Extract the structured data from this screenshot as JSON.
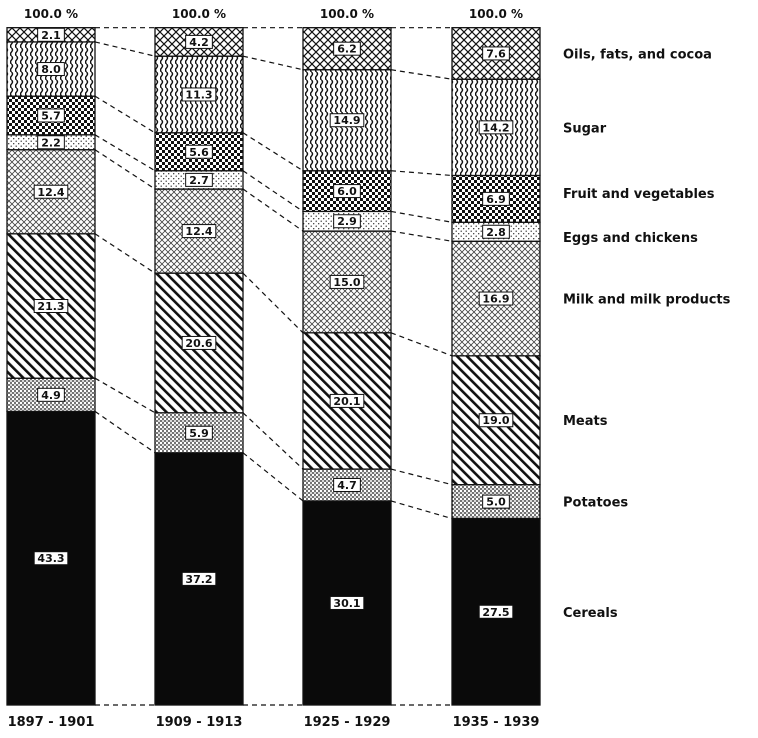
{
  "chart_data": {
    "type": "bar",
    "stacked": true,
    "normalized_percent": true,
    "categories": [
      "1897 - 1901",
      "1909 - 1913",
      "1925 - 1929",
      "1935 - 1939"
    ],
    "totals": [
      "100.0 %",
      "100.0 %",
      "100.0 %",
      "100.0 %"
    ],
    "series": [
      {
        "name": "Cereals",
        "values": [
          43.3,
          37.2,
          30.1,
          27.5
        ],
        "pattern": "solid-black"
      },
      {
        "name": "Potatoes",
        "values": [
          4.9,
          5.9,
          4.7,
          5.0
        ],
        "pattern": "stipple-dense"
      },
      {
        "name": "Meats",
        "values": [
          21.3,
          20.6,
          20.1,
          19.0
        ],
        "pattern": "diagonal-lines"
      },
      {
        "name": "Milk and milk products",
        "values": [
          12.4,
          12.4,
          15.0,
          16.9
        ],
        "pattern": "cross-hatch-fine"
      },
      {
        "name": "Eggs and chickens",
        "values": [
          2.2,
          2.7,
          2.9,
          2.8
        ],
        "pattern": "stipple-light"
      },
      {
        "name": "Fruit and vegetables",
        "values": [
          5.7,
          5.6,
          6.0,
          6.9
        ],
        "pattern": "checker-dots"
      },
      {
        "name": "Sugar",
        "values": [
          8.0,
          11.3,
          14.9,
          14.2
        ],
        "pattern": "wavy-vertical"
      },
      {
        "name": "Oils, fats, and cocoa",
        "values": [
          2.1,
          4.2,
          6.2,
          7.6
        ],
        "pattern": "cross-hatch-coarse"
      }
    ],
    "value_labels": [
      [
        "43.3",
        "37.2",
        "30.1",
        "27.5"
      ],
      [
        "4.9",
        "5.9",
        "4.7",
        "5.0"
      ],
      [
        "21.3",
        "20.6",
        "20.1",
        "19.0"
      ],
      [
        "12.4",
        "12.4",
        "15.0",
        "16.9"
      ],
      [
        "2.2",
        "2.7",
        "2.9",
        "2.8"
      ],
      [
        "5.7",
        "5.6",
        "6.0",
        "6.9"
      ],
      [
        "8.0",
        "11.3",
        "14.9",
        "14.2"
      ],
      [
        "2.1",
        "4.2",
        "6.2",
        "7.6"
      ]
    ],
    "ylim": [
      0,
      100
    ],
    "legend_placement": "right",
    "connectors": "dashed"
  },
  "colors": {
    "ink": "#111111",
    "background": "#ffffff"
  }
}
